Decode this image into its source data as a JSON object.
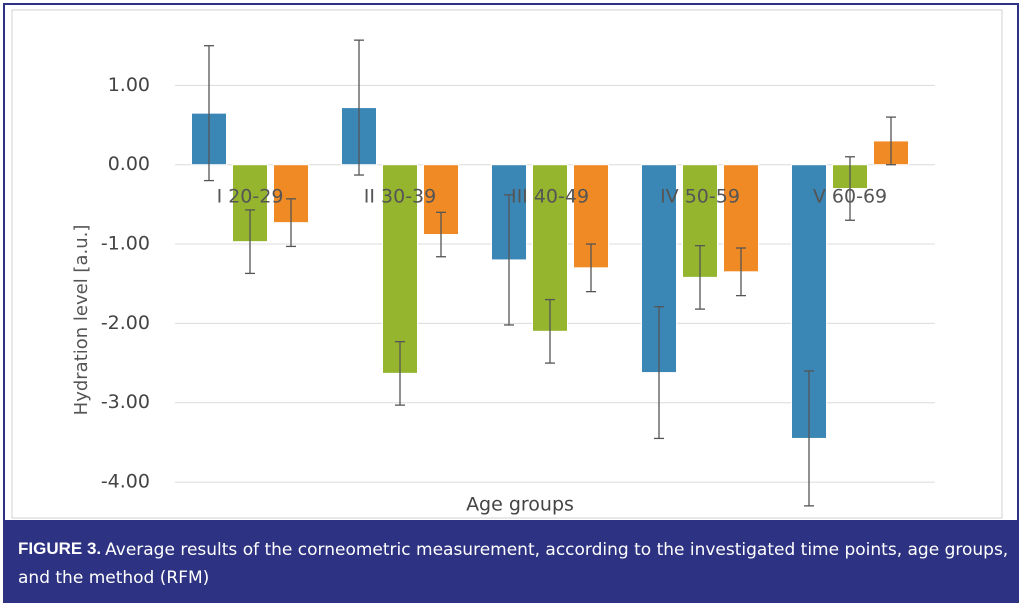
{
  "chart_data": {
    "type": "bar",
    "y_label": "Hydration level  [a.u.]",
    "x_label": "Age groups",
    "caption_label": "FIGURE 3.",
    "caption": "Average results of the corneometric measurement, according to the investigated time points, age groups, and the method (RFM)",
    "categories": [
      "I 20-29",
      "II 30-39",
      "III 40-49",
      "IV 50-59",
      "V 60-69"
    ],
    "series": [
      {
        "color": "#3a86b4",
        "values": [
          0.65,
          0.72,
          -1.2,
          -2.62,
          -3.45
        ],
        "errors": [
          0.85,
          0.85,
          0.82,
          0.83,
          0.85
        ]
      },
      {
        "color": "#95b52f",
        "values": [
          -0.97,
          -2.63,
          -2.1,
          -1.42,
          -0.3
        ],
        "errors": [
          0.4,
          0.4,
          0.4,
          0.4,
          0.4
        ]
      },
      {
        "color": "#f08a24",
        "values": [
          -0.73,
          -0.88,
          -1.3,
          -1.35,
          0.3
        ],
        "errors": [
          0.3,
          0.28,
          0.3,
          0.3,
          0.3
        ]
      }
    ],
    "ylim": [
      -4.1,
      1.95
    ],
    "yticks": [
      {
        "value": -4,
        "label": "-4.00"
      },
      {
        "value": -3,
        "label": "-3.00"
      },
      {
        "value": -2,
        "label": "-2.00"
      },
      {
        "value": -1,
        "label": "-1.00"
      },
      {
        "value": 0,
        "label": "0.00"
      },
      {
        "value": 1,
        "label": "1.00"
      }
    ],
    "grid": true
  }
}
